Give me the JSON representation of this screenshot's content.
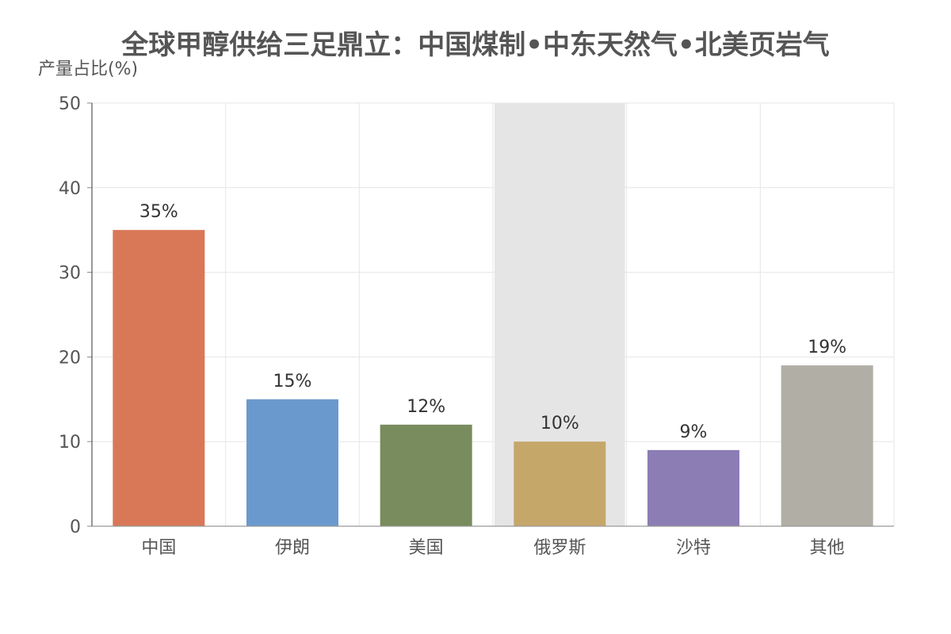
{
  "chart_data": {
    "type": "bar",
    "title": "全球甲醇供给三足鼎立：中国煤制•中东天然气•北美页岩气",
    "ylabel": "产量占比(%)",
    "xlabel": "",
    "ylim": [
      0,
      50
    ],
    "yticks": [
      0,
      10,
      20,
      30,
      40,
      50
    ],
    "categories": [
      "中国",
      "伊朗",
      "美国",
      "俄罗斯",
      "沙特",
      "其他"
    ],
    "values": [
      35,
      15,
      12,
      10,
      9,
      19
    ],
    "data_labels": [
      "35%",
      "15%",
      "12%",
      "10%",
      "9%",
      "19%"
    ],
    "colors": [
      "#d97857",
      "#6a9acd",
      "#788c5d",
      "#c6a76a",
      "#8c7db5",
      "#b0aea5"
    ],
    "highlight_category": "俄罗斯",
    "highlight_color": "#e5e5e5",
    "grid": true
  }
}
